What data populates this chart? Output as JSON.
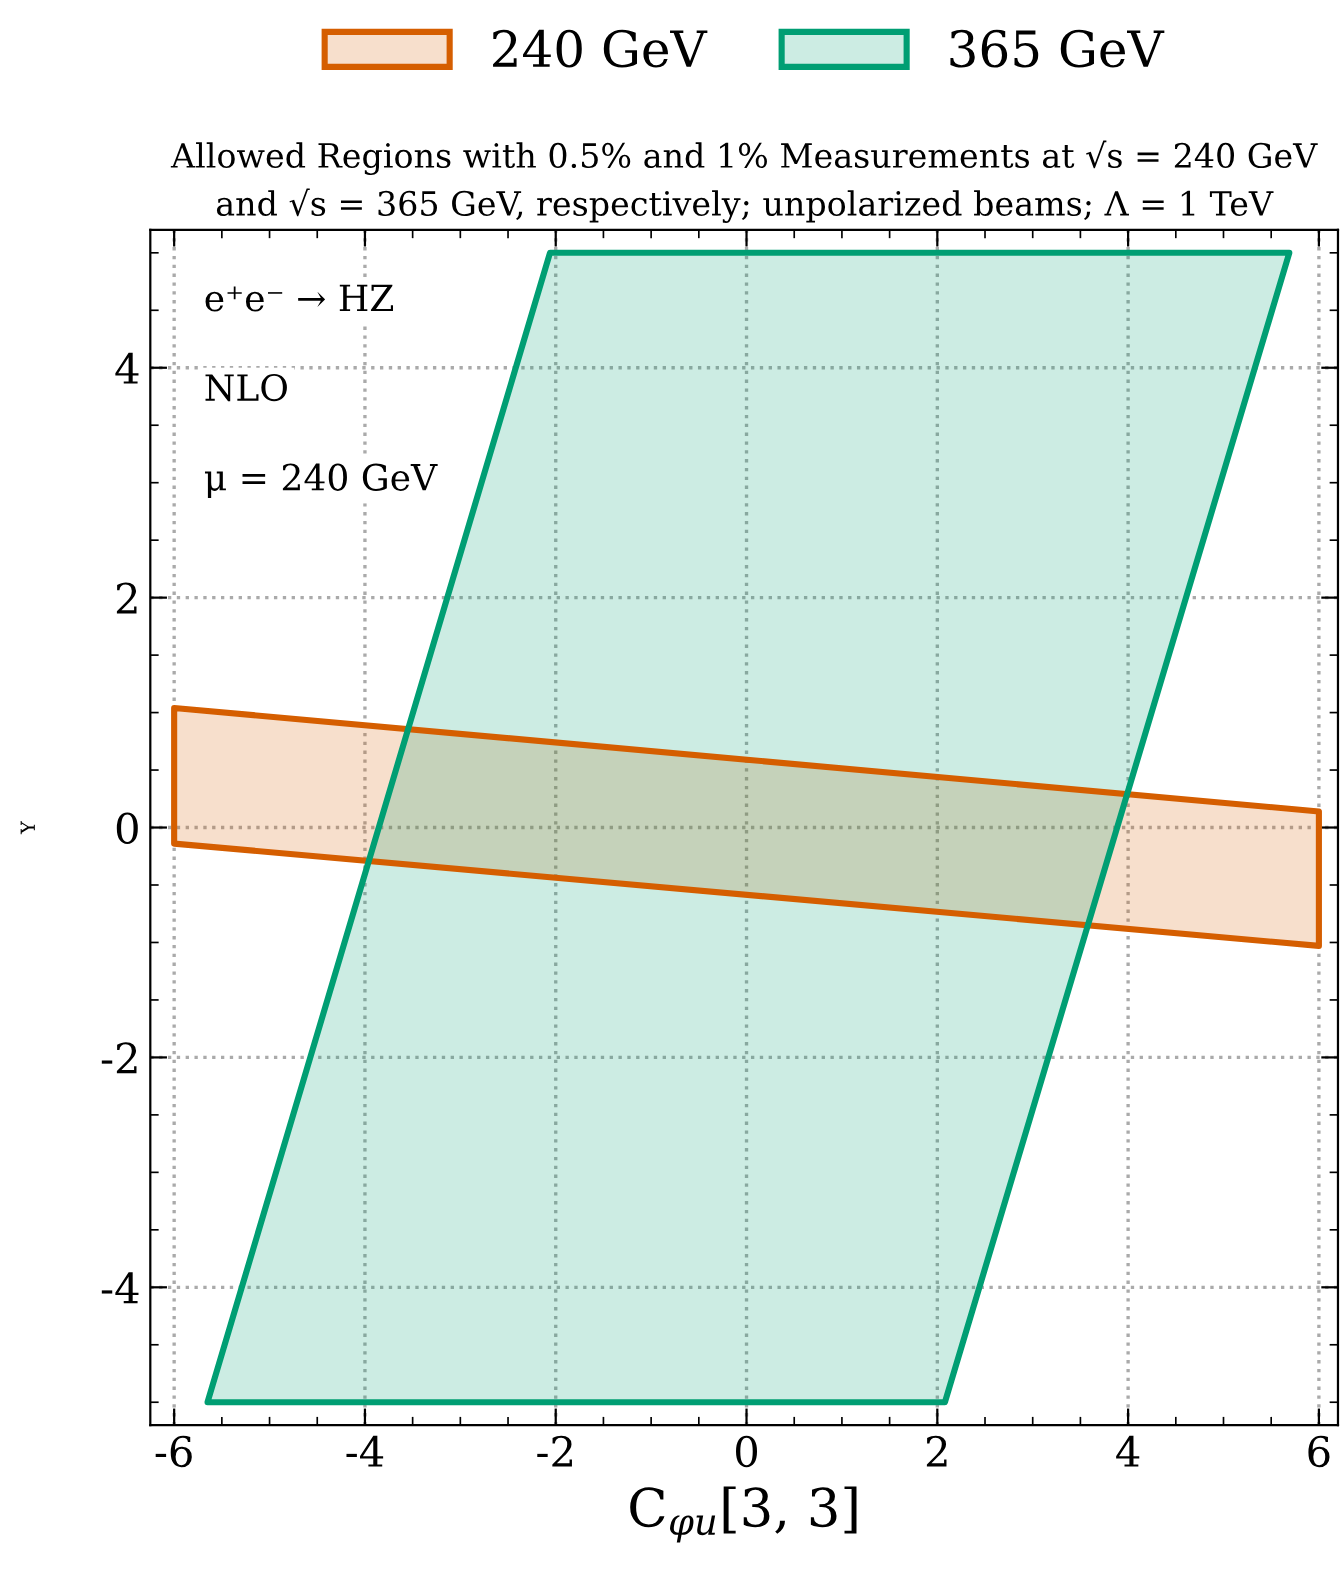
{
  "chart_data": {
    "type": "area",
    "title": "Allowed Regions with 0.5% and 1% Measurements at √s = 240 GeV and √s = 365 GeV, respectively; unpolarized beams; Λ = 1 TeV",
    "xlabel": "C$_{φu}$[3, 3]",
    "ylabel": "Y",
    "annotations": [
      "e⁺e⁻ → HZ",
      "NLO",
      "μ = 240 GeV"
    ],
    "series": [
      {
        "name": "240 GeV",
        "color": "#d55e00",
        "x": [
          -6,
          6,
          6,
          -6
        ],
        "values": [
          1.04,
          0.14,
          -1.03,
          -0.14
        ]
      },
      {
        "name": "365 GeV",
        "color": "#009e73",
        "x": [
          -2.06,
          5.69,
          2.08,
          -5.65
        ],
        "values": [
          5.0,
          5.0,
          -5.0,
          -5.0
        ]
      }
    ],
    "xlim": [
      -6.25,
      6.2
    ],
    "ylim": [
      -5.2,
      5.2
    ],
    "xticks": [
      -6,
      -4,
      -2,
      0,
      2,
      4,
      6
    ],
    "yticks": [
      -4,
      -2,
      0,
      2,
      4
    ],
    "grid": true,
    "legend": "top"
  }
}
